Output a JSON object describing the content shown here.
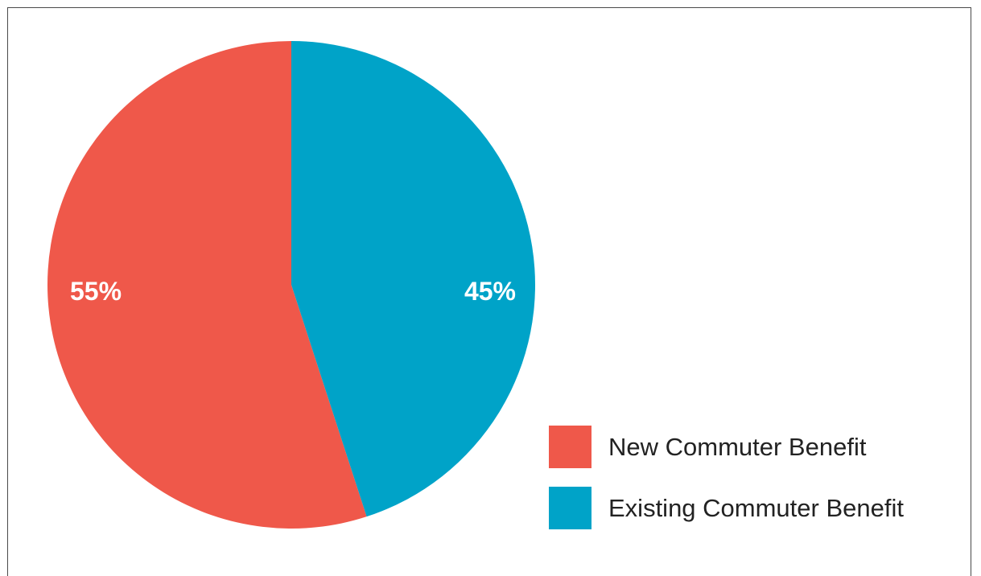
{
  "chart_data": {
    "type": "pie",
    "title": "",
    "series": [
      {
        "name": "New Commuter Benefit",
        "value": 55,
        "label": "55%",
        "color": "#EF584A"
      },
      {
        "name": "Existing Commuter Benefit",
        "value": 45,
        "label": "45%",
        "color": "#00A3C8"
      }
    ],
    "legend": {
      "position": "bottom-right",
      "items": [
        {
          "label": "New Commuter Benefit",
          "color": "#EF584A"
        },
        {
          "label": "Existing Commuter Benefit",
          "color": "#00A3C8"
        }
      ]
    }
  }
}
